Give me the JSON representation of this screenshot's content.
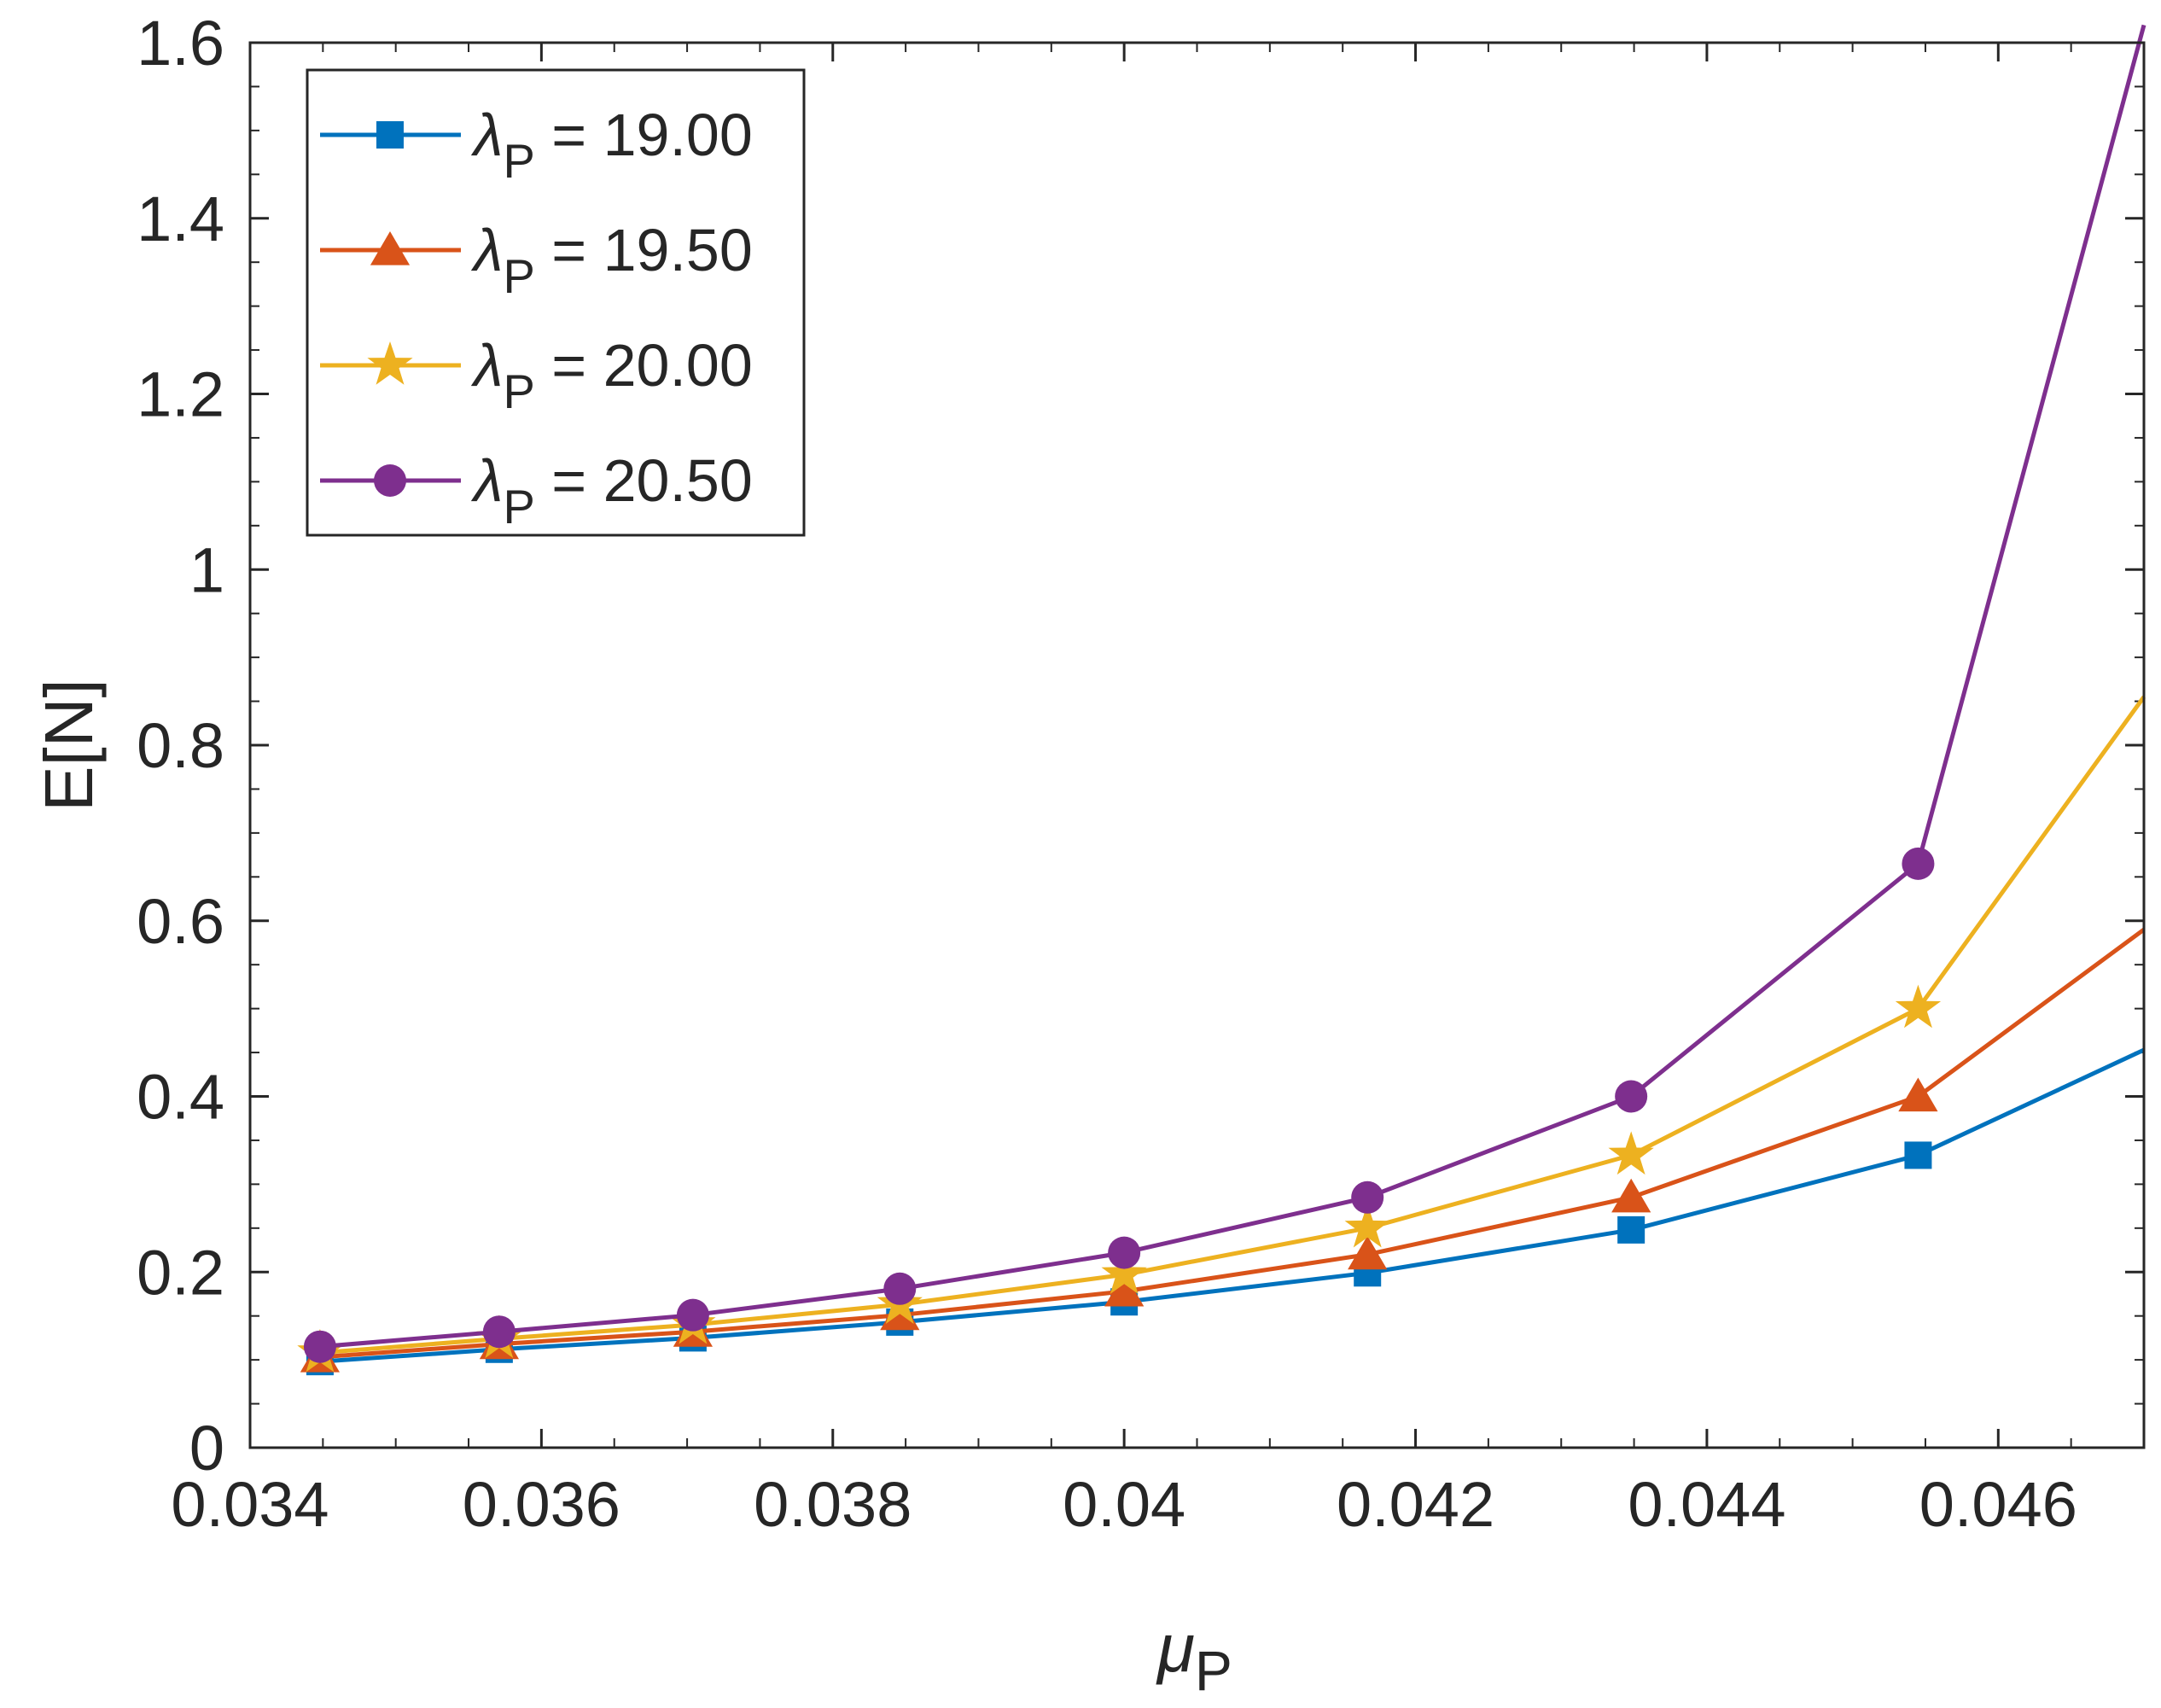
{
  "chart_data": {
    "type": "line",
    "title": "",
    "xlabel": "μ",
    "xlabel_sub": "P",
    "ylabel": "E[N]",
    "xlim": [
      0.034,
      0.047
    ],
    "ylim": [
      0,
      1.6
    ],
    "x_ticks": [
      0.034,
      0.036,
      0.038,
      0.04,
      0.042,
      0.044,
      0.046
    ],
    "x_tick_labels": [
      "0.034",
      "0.036",
      "0.038",
      "0.04",
      "0.042",
      "0.044",
      "0.046"
    ],
    "y_ticks": [
      0,
      0.2,
      0.4,
      0.6,
      0.8,
      1,
      1.2,
      1.4,
      1.6
    ],
    "y_tick_labels": [
      "0",
      "0.2",
      "0.4",
      "0.6",
      "0.8",
      "1",
      "1.2",
      "1.4",
      "1.6"
    ],
    "grid": false,
    "legend_position": "top-left",
    "x": [
      0.03448,
      0.03571,
      0.03704,
      0.03846,
      0.04,
      0.04167,
      0.04348,
      0.04545,
      0.047
    ],
    "series": [
      {
        "name": "λP = 19.00",
        "legend_symbol": "λ",
        "legend_sub": "P",
        "legend_value": " = 19.00",
        "color": "#0072BD",
        "marker": "square",
        "values": [
          0.098,
          0.112,
          0.125,
          0.143,
          0.166,
          0.199,
          0.248,
          0.333,
          0.453
        ]
      },
      {
        "name": "λP = 19.50",
        "legend_symbol": "λ",
        "legend_sub": "P",
        "legend_value": " = 19.50",
        "color": "#D95319",
        "marker": "triangle",
        "values": [
          0.103,
          0.118,
          0.132,
          0.151,
          0.178,
          0.22,
          0.285,
          0.4,
          0.59
        ]
      },
      {
        "name": "λP = 20.00",
        "legend_symbol": "λ",
        "legend_sub": "P",
        "legend_value": " = 20.00",
        "color": "#EDB120",
        "marker": "star",
        "values": [
          0.108,
          0.124,
          0.14,
          0.163,
          0.197,
          0.25,
          0.333,
          0.5,
          0.855
        ]
      },
      {
        "name": "λP = 20.50",
        "legend_symbol": "λ",
        "legend_sub": "P",
        "legend_value": " = 20.50",
        "color": "#7E2F8E",
        "marker": "circle",
        "values": [
          0.115,
          0.132,
          0.151,
          0.181,
          0.222,
          0.285,
          0.4,
          0.665,
          1.62
        ]
      }
    ]
  }
}
